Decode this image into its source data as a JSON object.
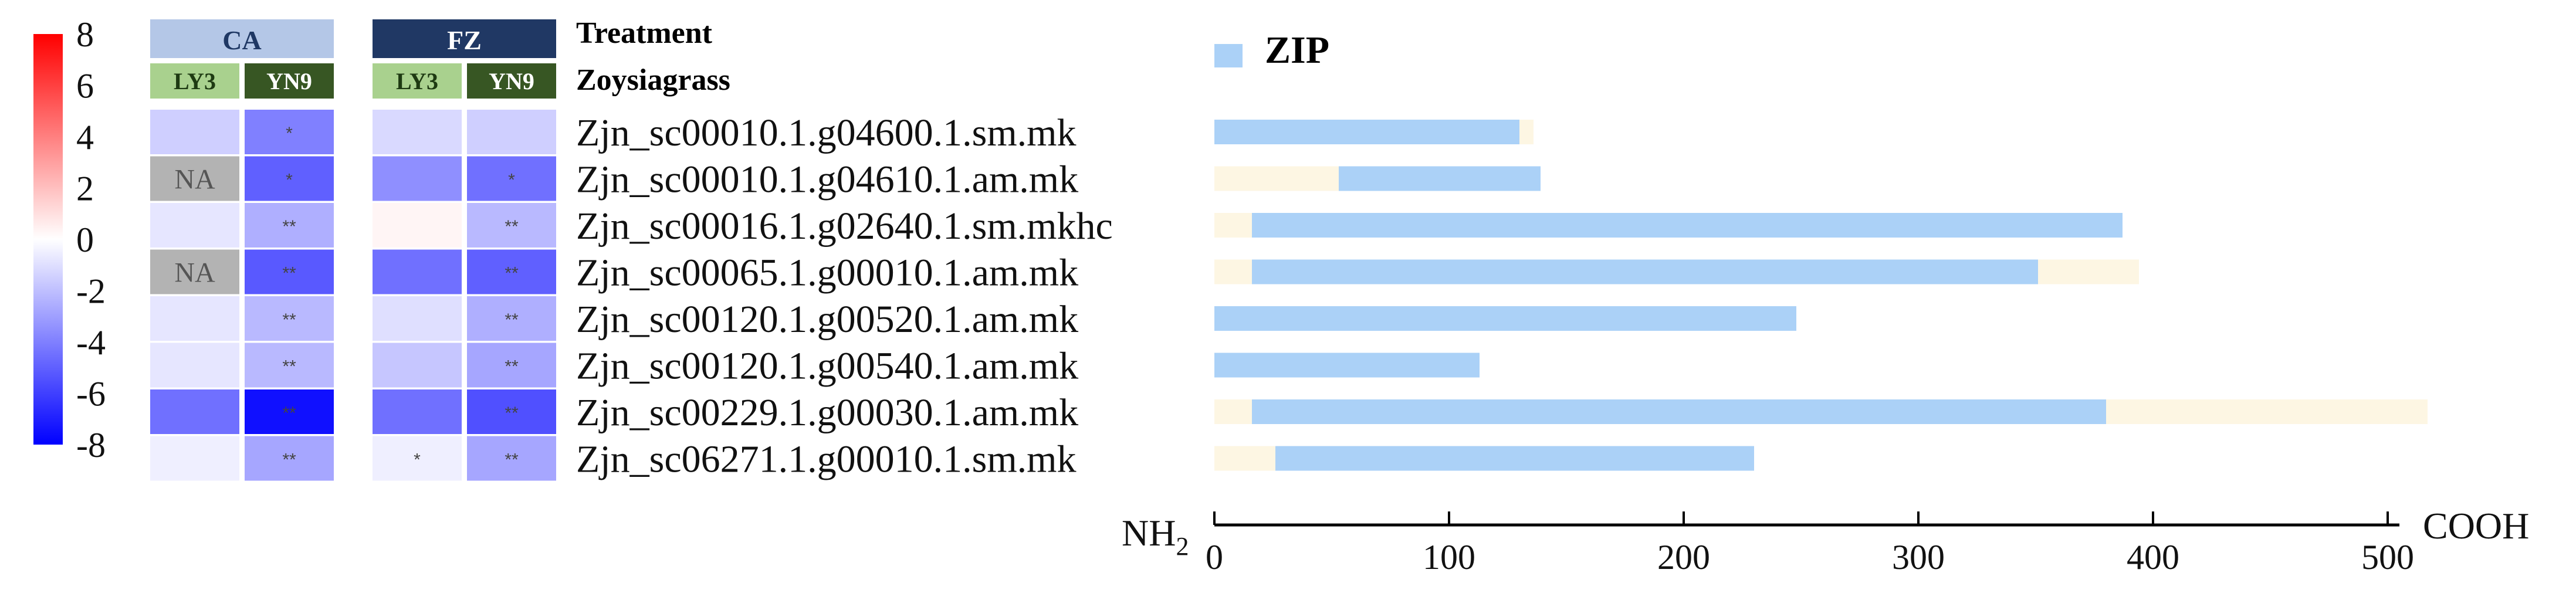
{
  "colorbar": {
    "ticks": [
      "8",
      "6",
      "4",
      "2",
      "0",
      "-2",
      "-4",
      "-6",
      "-8"
    ],
    "min": -8,
    "max": 8,
    "colors": {
      "high": "#ff0000",
      "mid": "#ffffff",
      "low": "#0000ff"
    }
  },
  "heatmap": {
    "treatment_label": "Treatment",
    "zoysiagrass_label": "Zoysiagrass",
    "groups": [
      {
        "name": "CA",
        "color": "#b4c7e7",
        "text_color": "#1f3864",
        "cultivars": [
          "LY3",
          "YN9"
        ]
      },
      {
        "name": "FZ",
        "color": "#203864",
        "text_color": "#ffffff",
        "cultivars": [
          "LY3",
          "YN9"
        ]
      }
    ],
    "cultivar_colors": {
      "LY3": "#a9d18e",
      "YN9": "#375623"
    },
    "cultivar_text_colors": {
      "LY3": "#1e3a12",
      "YN9": "#ffffff"
    },
    "na_color": "#b3b3b3",
    "na_label": "NA",
    "rows": [
      {
        "gene": "Zjn_sc00010.1.g04600.1.sm.mk",
        "values": [
          -1.5,
          -4.0,
          -1.2,
          -1.5
        ],
        "sig": [
          "",
          "*",
          "",
          ""
        ]
      },
      {
        "gene": "Zjn_sc00010.1.g04610.1.am.mk",
        "values": [
          null,
          -5.0,
          -3.5,
          -4.5
        ],
        "sig": [
          "",
          "*",
          "",
          "*"
        ]
      },
      {
        "gene": "Zjn_sc00016.1.g02640.1.sm.mkhc",
        "values": [
          -0.8,
          -2.5,
          0.3,
          -2.2
        ],
        "sig": [
          "",
          "**",
          "",
          "**"
        ]
      },
      {
        "gene": "Zjn_sc00065.1.g00010.1.am.mk",
        "values": [
          null,
          -5.2,
          -4.5,
          -5.0
        ],
        "sig": [
          "",
          "**",
          "",
          "**"
        ]
      },
      {
        "gene": "Zjn_sc00120.1.g00520.1.am.mk",
        "values": [
          -0.8,
          -2.2,
          -1.0,
          -2.5
        ],
        "sig": [
          "",
          "**",
          "",
          "**"
        ]
      },
      {
        "gene": "Zjn_sc00120.1.g00540.1.am.mk",
        "values": [
          -0.8,
          -2.2,
          -1.8,
          -2.8
        ],
        "sig": [
          "",
          "**",
          "",
          "**"
        ]
      },
      {
        "gene": "Zjn_sc00229.1.g00030.1.am.mk",
        "values": [
          -4.5,
          -7.5,
          -4.5,
          -5.5
        ],
        "sig": [
          "",
          "**",
          "",
          "**"
        ]
      },
      {
        "gene": "Zjn_sc06271.1.g00010.1.sm.mk",
        "values": [
          -0.5,
          -2.8,
          -0.5,
          -2.8
        ],
        "sig": [
          "",
          "**",
          "*",
          "**"
        ]
      }
    ]
  },
  "chart_data": {
    "type": "bar",
    "legend": {
      "label": "ZIP",
      "color": "#abd1f7"
    },
    "protein_color": "#fdf6e3",
    "x_ticks": [
      0,
      100,
      200,
      300,
      400,
      500
    ],
    "xlim": [
      0,
      500
    ],
    "x_start_label": "NH",
    "x_start_sub": "2",
    "x_end_label": "COOH",
    "proteins": [
      {
        "gene": "Zjn_sc00010.1.g04600.1.sm.mk",
        "length": 136,
        "zip_start": 1,
        "zip_end": 130
      },
      {
        "gene": "Zjn_sc00010.1.g04610.1.am.mk",
        "length": 139,
        "zip_start": 54,
        "zip_end": 139
      },
      {
        "gene": "Zjn_sc00016.1.g02640.1.sm.mkhc",
        "length": 387,
        "zip_start": 17,
        "zip_end": 387
      },
      {
        "gene": "Zjn_sc00065.1.g00010.1.am.mk",
        "length": 394,
        "zip_start": 17,
        "zip_end": 351
      },
      {
        "gene": "Zjn_sc00120.1.g00520.1.am.mk",
        "length": 248,
        "zip_start": 1,
        "zip_end": 248
      },
      {
        "gene": "Zjn_sc00120.1.g00540.1.am.mk",
        "length": 113,
        "zip_start": 1,
        "zip_end": 113
      },
      {
        "gene": "Zjn_sc00229.1.g00030.1.am.mk",
        "length": 517,
        "zip_start": 17,
        "zip_end": 380
      },
      {
        "gene": "Zjn_sc06271.1.g00010.1.sm.mk",
        "length": 230,
        "zip_start": 27,
        "zip_end": 230
      }
    ]
  }
}
